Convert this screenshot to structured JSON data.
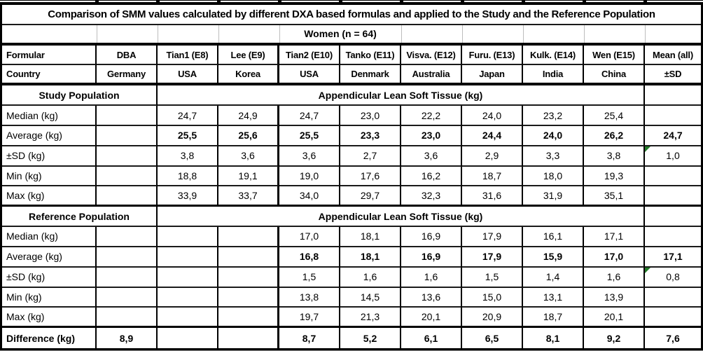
{
  "colors": {
    "border": "#000000",
    "faint_gridline": "#bdbdbd",
    "error_marker": "#217a26"
  },
  "chart_data": {
    "type": "table",
    "title": "Comparison of SMM values calculated by different DXA based formulas and applied to the Study and the Reference Population",
    "subtitle": "Women (n = 64)",
    "header": {
      "label": "Formular",
      "values": [
        "DBA",
        "Tian1 (E8)",
        "Lee (E9)",
        "Tian2 (E10)",
        "Tanko (E11)",
        "Visva. (E12)",
        "Furu. (E13)",
        "Kulk. (E14)",
        "Wen (E15)",
        "Mean (all)"
      ]
    },
    "country": {
      "label": "Country",
      "values": [
        "Germany",
        "USA",
        "Korea",
        "USA",
        "Denmark",
        "Australia",
        "Japan",
        "India",
        "China",
        "±SD"
      ]
    },
    "sections": [
      {
        "name": "Study Population",
        "span_header": "Appendicular Lean Soft Tissue (kg)",
        "rows": [
          {
            "label": "Median (kg)",
            "bold": false,
            "marker": false,
            "values": [
              "",
              "24,7",
              "24,9",
              "24,7",
              "23,0",
              "22,2",
              "24,0",
              "23,2",
              "25,4",
              ""
            ]
          },
          {
            "label": "Average (kg)",
            "bold": true,
            "marker": false,
            "values": [
              "",
              "25,5",
              "25,6",
              "25,5",
              "23,3",
              "23,0",
              "24,4",
              "24,0",
              "26,2",
              "24,7"
            ]
          },
          {
            "label": "±SD (kg)",
            "bold": false,
            "marker": true,
            "values": [
              "",
              "3,8",
              "3,6",
              "3,6",
              "2,7",
              "3,6",
              "2,9",
              "3,3",
              "3,8",
              "1,0"
            ]
          },
          {
            "label": "Min (kg)",
            "bold": false,
            "marker": false,
            "values": [
              "",
              "18,8",
              "19,1",
              "19,0",
              "17,6",
              "16,2",
              "18,7",
              "18,0",
              "19,3",
              ""
            ]
          },
          {
            "label": "Max (kg)",
            "bold": false,
            "marker": false,
            "values": [
              "",
              "33,9",
              "33,7",
              "34,0",
              "29,7",
              "32,3",
              "31,6",
              "31,9",
              "35,1",
              ""
            ]
          }
        ]
      },
      {
        "name": "Reference Population",
        "span_header": "Appendicular Lean Soft Tissue (kg)",
        "rows": [
          {
            "label": "Median (kg)",
            "bold": false,
            "marker": false,
            "values": [
              "",
              "",
              "",
              "17,0",
              "18,1",
              "16,9",
              "17,9",
              "16,1",
              "17,1",
              ""
            ]
          },
          {
            "label": "Average (kg)",
            "bold": true,
            "marker": false,
            "values": [
              "",
              "",
              "",
              "16,8",
              "18,1",
              "16,9",
              "17,9",
              "15,9",
              "17,0",
              "17,1"
            ]
          },
          {
            "label": "±SD (kg)",
            "bold": false,
            "marker": true,
            "values": [
              "",
              "",
              "",
              "1,5",
              "1,6",
              "1,6",
              "1,5",
              "1,4",
              "1,6",
              "0,8"
            ]
          },
          {
            "label": "Min (kg)",
            "bold": false,
            "marker": false,
            "values": [
              "",
              "",
              "",
              "13,8",
              "14,5",
              "13,6",
              "15,0",
              "13,1",
              "13,9",
              ""
            ]
          },
          {
            "label": "Max (kg)",
            "bold": false,
            "marker": false,
            "values": [
              "",
              "",
              "",
              "19,7",
              "21,3",
              "20,1",
              "20,9",
              "18,7",
              "20,1",
              ""
            ]
          }
        ]
      }
    ],
    "difference": {
      "label": "Difference (kg)",
      "values": [
        "8,9",
        "",
        "",
        "8,7",
        "5,2",
        "6,1",
        "6,5",
        "8,1",
        "9,2",
        "7,6"
      ]
    }
  }
}
